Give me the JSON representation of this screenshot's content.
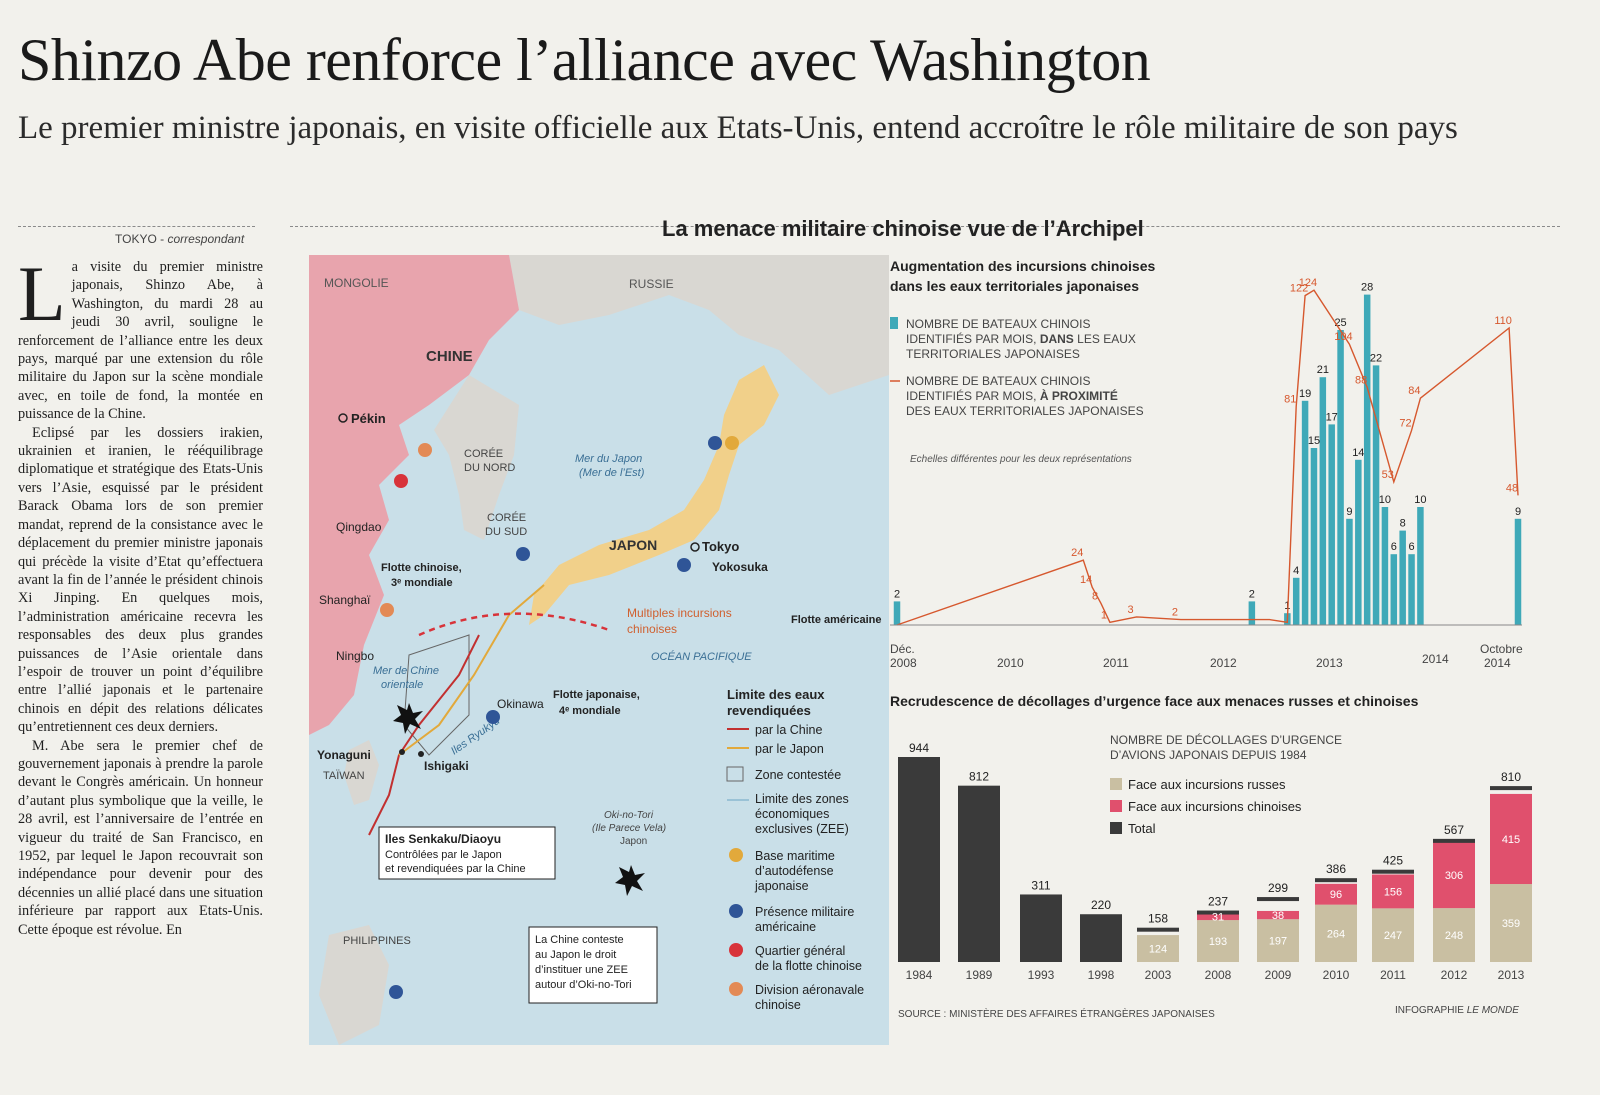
{
  "headline": "Shinzo Abe renforce l’alliance avec Washington",
  "subhead": "Le premier ministre japonais, en visite officielle aux Etats-Unis, entend accroître le rôle militaire de son pays",
  "byline": {
    "place": "TOKYO",
    "role": "correspondant"
  },
  "article": {
    "dropcap": "L",
    "p1": "a visite du premier ministre japonais, Shinzo Abe, à Washington, du mardi 28 au jeudi 30 avril, souligne le renforcement de l’alliance entre les deux pays, marqué par une extension du rôle militaire du Japon sur la scène mondiale avec, en toile de fond, la montée en puissance de la Chine.",
    "p2": "Eclipsé par les dossiers irakien, ukrainien et iranien, le rééquilibrage diplomatique et stratégique des Etats-Unis vers l’Asie, esquissé par le président Barack Obama lors de son premier mandat, reprend de la consistance avec le déplacement du premier ministre japonais qui précède la visite d’Etat qu’effectuera avant la fin de l’année le président chinois Xi Jinping. En quelques mois, l’administration américaine recevra les responsables des deux plus grandes puissances de l’Asie orientale dans l’espoir de trouver un point d’équilibre entre l’allié japonais et le partenaire chinois en dépit des relations délicates qu’entretiennent ces deux derniers.",
    "p3": "M. Abe sera le premier chef de gouvernement japonais à prendre la parole devant le Congrès américain. Un honneur d’autant plus symbolique que la veille, le 28 avril, est l’anniversaire de l’entrée en vigueur du traité de San Francisco, en 1952, par lequel le Japon recouvrait son indépendance pour devenir pour des décennies un allié placé dans une situation inférieure par rapport aux Etats-Unis. Cette époque est révolue. En"
  },
  "infographic": {
    "title": "La menace militaire chinoise vue de l’Archipel",
    "source": "SOURCE : MINISTÈRE DES AFFAIRES ÉTRANGÈRES JAPONAISES",
    "credit_prefix": "INFOGRAPHIE",
    "credit_name": "LE MONDE"
  },
  "map": {
    "colors": {
      "china": "#e8a4ad",
      "sea": "#c9dfe8",
      "land": "#d9d7d2",
      "japan": "#f1d08a",
      "red": "#d8333a",
      "blue": "#2f5597",
      "orange": "#e38a55"
    },
    "labels": {
      "mongolie": "MONGOLIE",
      "russie": "RUSSIE",
      "chine": "CHINE",
      "pekin": "Pékin",
      "coree_nord_1": "CORÉE",
      "coree_nord_2": "DU NORD",
      "coree_sud_1": "CORÉE",
      "coree_sud_2": "DU SUD",
      "mer_japon_1": "Mer du Japon",
      "mer_japon_2": "(Mer de l’Est)",
      "japon": "JAPON",
      "tokyo": "Tokyo",
      "yokosuka": "Yokosuka",
      "qingdao": "Qingdao",
      "flotte_chinoise_1": "Flotte chinoise,",
      "flotte_chinoise_2": "3ᵉ mondiale",
      "shanghai": "Shanghaï",
      "ningbo": "Ningbo",
      "incursions_1": "Multiples incursions",
      "incursions_2": "chinoises",
      "flotte_americaine": "Flotte américaine",
      "ocean": "OCÉAN PACIFIQUE",
      "mer_chine_1": "Mer de Chine",
      "mer_chine_2": "orientale",
      "okinawa": "Okinawa",
      "flotte_japonaise_1": "Flotte japonaise,",
      "flotte_japonaise_2": "4ᵉ mondiale",
      "ryukyu": "Iles Ryukyu",
      "yonaguni": "Yonaguni",
      "ishigaki": "Ishigaki",
      "taiwan": "TAÏWAN",
      "senkaku_title": "Iles Senkaku/Diaoyu",
      "senkaku_1": "Contrôlées par le Japon",
      "senkaku_2": "et revendiquées par la Chine",
      "okinotori_1": "Oki-no-Tori",
      "okinotori_2": "(Ile Parece Vela)",
      "okinotori_3": "Japon",
      "philippines": "PHILIPPINES",
      "zee_1": "La Chine conteste",
      "zee_2": "au Japon le droit",
      "zee_3": "d’instituer une ZEE",
      "zee_4": "autour d’Oki-no-Tori"
    },
    "legend": {
      "title_1": "Limite des eaux",
      "title_2": "revendiquées",
      "chine": "par la Chine",
      "japon": "par le Japon",
      "zone": "Zone contestée",
      "zee_1": "Limite des zones",
      "zee_2": "économiques",
      "zee_3": "exclusives (ZEE)",
      "base_1": "Base maritime",
      "base_2": "d’autodéfense",
      "base_3": "japonaise",
      "us_1": "Présence militaire",
      "us_2": "américaine",
      "qg_1": "Quartier général",
      "qg_2": "de la flotte chinoise",
      "div_1": "Division aéronavale",
      "div_2": "chinoise"
    }
  },
  "chart_data": [
    {
      "type": "bar",
      "title": "Augmentation des incursions chinoises dans les eaux territoriales japonaises",
      "title_line1": "Augmentation des incursions chinoises",
      "title_line2": "dans les eaux territoriales japonaises",
      "legend_bars_1": "NOMBRE DE BATEAUX CHINOIS",
      "legend_bars_2": "IDENTIFIÉS PAR MOIS,",
      "legend_bars_bold": "DANS",
      "legend_bars_3": "LES EAUX",
      "legend_bars_4": "TERRITORIALES JAPONAISES",
      "legend_line_1": "NOMBRE DE BATEAUX CHINOIS",
      "legend_line_2": "IDENTIFIÉS PAR MOIS,",
      "legend_line_bold": "À PROXIMITÉ",
      "legend_line_3": "DES EAUX TERRITORIALES JAPONAISES",
      "note": "Echelles différentes pour les deux représentations",
      "x_ticks": [
        "Déc.\n2008",
        "2010",
        "2011",
        "2012",
        "2013",
        "2014",
        "Octobre\n2014"
      ],
      "tick_labels": {
        "dec": "Déc.",
        "y2008": "2008",
        "y2010": "2010",
        "y2011": "2011",
        "y2012": "2012",
        "y2013": "2013",
        "y2014": "2014",
        "oct": "Octobre",
        "oct_y": "2014"
      },
      "colors": {
        "bars": "#3fa9b8",
        "line": "#d6582e"
      },
      "bars": [
        {
          "month": "2008-12",
          "value": 2
        },
        {
          "month": "2012-04",
          "value": 2
        },
        {
          "month": "2012-08",
          "value": 1
        },
        {
          "month": "2012-09",
          "value": 4
        },
        {
          "month": "2012-10",
          "value": 19
        },
        {
          "month": "2012-11",
          "value": 15
        },
        {
          "month": "2012-12",
          "value": 21
        },
        {
          "month": "2013-01",
          "value": 17
        },
        {
          "month": "2013-02",
          "value": 25
        },
        {
          "month": "2013-03",
          "value": 9
        },
        {
          "month": "2013-04",
          "value": 14
        },
        {
          "month": "2013-05",
          "value": 28
        },
        {
          "month": "2013-06",
          "value": 22
        },
        {
          "month": "2013-07",
          "value": 10
        },
        {
          "month": "2013-08",
          "value": 6
        },
        {
          "month": "2013-09",
          "value": 8
        },
        {
          "month": "2013-10",
          "value": 6
        },
        {
          "month": "2013-11",
          "value": 10
        },
        {
          "month": "2014-10",
          "value": 9
        }
      ],
      "bar_labels": [
        {
          "month": "2008-12",
          "text": "2"
        },
        {
          "month": "2012-04",
          "text": "2"
        },
        {
          "month": "2012-08",
          "text": "1"
        },
        {
          "month": "2012-09",
          "text": "4"
        },
        {
          "month": "2012-10",
          "text": "19"
        },
        {
          "month": "2012-11",
          "text": "15"
        },
        {
          "month": "2012-12",
          "text": "21"
        },
        {
          "month": "2013-01",
          "text": "17"
        },
        {
          "month": "2013-02",
          "text": "25"
        },
        {
          "month": "2013-03",
          "text": "9"
        },
        {
          "month": "2013-04",
          "text": "14"
        },
        {
          "month": "2013-05",
          "text": "28"
        },
        {
          "month": "2013-06",
          "text": "22"
        },
        {
          "month": "2013-07",
          "text": "10"
        },
        {
          "month": "2013-08",
          "text": "6"
        },
        {
          "month": "2013-09",
          "text": "8"
        },
        {
          "month": "2013-10",
          "text": "6"
        },
        {
          "month": "2013-11",
          "text": "10"
        },
        {
          "month": "2014-10",
          "text": "9"
        }
      ],
      "line": [
        {
          "month": "2008-12",
          "value": 0
        },
        {
          "month": "2010-09",
          "value": 24
        },
        {
          "month": "2010-10",
          "value": 14
        },
        {
          "month": "2010-11",
          "value": 8
        },
        {
          "month": "2010-12",
          "value": 1
        },
        {
          "month": "2011-03",
          "value": 3
        },
        {
          "month": "2011-08",
          "value": 2
        },
        {
          "month": "2012-06",
          "value": 2
        },
        {
          "month": "2012-08",
          "value": 1
        },
        {
          "month": "2012-09",
          "value": 81
        },
        {
          "month": "2012-10",
          "value": 122
        },
        {
          "month": "2012-11",
          "value": 124
        },
        {
          "month": "2013-03",
          "value": 104
        },
        {
          "month": "2013-05",
          "value": 88
        },
        {
          "month": "2013-08",
          "value": 53
        },
        {
          "month": "2013-10",
          "value": 72
        },
        {
          "month": "2013-11",
          "value": 84
        },
        {
          "month": "2014-09",
          "value": 110
        },
        {
          "month": "2014-10",
          "value": 48
        }
      ],
      "line_labels": [
        {
          "month": "2010-09",
          "text": "24"
        },
        {
          "month": "2010-10",
          "text": "14"
        },
        {
          "month": "2010-11",
          "text": "8"
        },
        {
          "month": "2010-12",
          "text": "1"
        },
        {
          "month": "2011-03",
          "text": "3"
        },
        {
          "month": "2011-08",
          "text": "2"
        },
        {
          "month": "2012-09",
          "text": "81"
        },
        {
          "month": "2012-10",
          "text": "122"
        },
        {
          "month": "2012-11",
          "text": "124"
        },
        {
          "month": "2013-03",
          "text": "104"
        },
        {
          "month": "2013-05",
          "text": "88"
        },
        {
          "month": "2013-08",
          "text": "53"
        },
        {
          "month": "2013-10",
          "text": "72"
        },
        {
          "month": "2013-11",
          "text": "84"
        },
        {
          "month": "2014-09",
          "text": "110"
        },
        {
          "month": "2014-10",
          "text": "48"
        }
      ]
    },
    {
      "type": "bar",
      "title": "Recrudescence de décollages d’urgence face aux menaces russes et chinoises",
      "legend_title_1": "NOMBRE DE DÉCOLLAGES D’URGENCE",
      "legend_title_2": "D’AVIONS JAPONAIS DEPUIS 1984",
      "legend": [
        "Face aux incursions russes",
        "Face aux incursions chinoises",
        "Total"
      ],
      "colors": {
        "russes": "#c9bfa2",
        "chinoises": "#e0506d",
        "total": "#3a3a3a"
      },
      "categories": [
        "1984",
        "1989",
        "1993",
        "1998",
        "2003",
        "2008",
        "2009",
        "2010",
        "2011",
        "2012",
        "2013"
      ],
      "series": [
        {
          "name": "Total",
          "values": [
            944,
            812,
            311,
            220,
            158,
            237,
            299,
            386,
            425,
            567,
            810
          ]
        },
        {
          "name": "Face aux incursions russes",
          "values": [
            null,
            null,
            null,
            null,
            124,
            193,
            197,
            264,
            247,
            248,
            359
          ]
        },
        {
          "name": "Face aux incursions chinoises",
          "values": [
            null,
            null,
            null,
            null,
            null,
            31,
            38,
            96,
            156,
            306,
            415
          ]
        }
      ],
      "ylim": [
        0,
        944
      ]
    }
  ]
}
